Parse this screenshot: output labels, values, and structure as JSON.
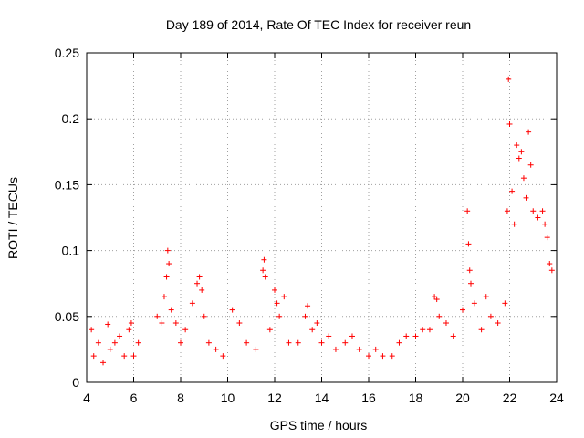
{
  "chart_data": {
    "type": "scatter",
    "title": "Day 189 of 2014, Rate Of TEC Index for receiver reun",
    "xlabel": "GPS time / hours",
    "ylabel": "ROTI / TECUs",
    "xlim": [
      4,
      24
    ],
    "ylim": [
      0,
      0.25
    ],
    "xticks": [
      4,
      6,
      8,
      10,
      12,
      14,
      16,
      18,
      20,
      22,
      24
    ],
    "xtick_labels": [
      "4",
      "6",
      "8",
      "10",
      "12",
      "14",
      "16",
      "18",
      "20",
      "22",
      "24"
    ],
    "yticks": [
      0,
      0.05,
      0.1,
      0.15,
      0.2,
      0.25
    ],
    "ytick_labels": [
      "0",
      "0.05",
      "0.1",
      "0.15",
      "0.2",
      "0.25"
    ],
    "grid": true,
    "marker": "+",
    "color": "#ff0000",
    "series": [
      {
        "name": "ROTI",
        "points": [
          [
            4.2,
            0.04
          ],
          [
            4.3,
            0.02
          ],
          [
            4.5,
            0.03
          ],
          [
            4.7,
            0.015
          ],
          [
            4.9,
            0.044
          ],
          [
            5.0,
            0.025
          ],
          [
            5.2,
            0.03
          ],
          [
            5.4,
            0.035
          ],
          [
            5.6,
            0.02
          ],
          [
            5.8,
            0.04
          ],
          [
            5.9,
            0.045
          ],
          [
            6.0,
            0.02
          ],
          [
            6.2,
            0.03
          ],
          [
            7.0,
            0.05
          ],
          [
            7.2,
            0.045
          ],
          [
            7.3,
            0.065
          ],
          [
            7.4,
            0.08
          ],
          [
            7.45,
            0.1
          ],
          [
            7.5,
            0.09
          ],
          [
            7.6,
            0.055
          ],
          [
            7.8,
            0.045
          ],
          [
            8.0,
            0.03
          ],
          [
            8.2,
            0.04
          ],
          [
            8.5,
            0.06
          ],
          [
            8.7,
            0.075
          ],
          [
            8.8,
            0.08
          ],
          [
            8.9,
            0.07
          ],
          [
            9.0,
            0.05
          ],
          [
            9.2,
            0.03
          ],
          [
            9.5,
            0.025
          ],
          [
            9.8,
            0.02
          ],
          [
            10.2,
            0.055
          ],
          [
            10.5,
            0.045
          ],
          [
            10.8,
            0.03
          ],
          [
            11.2,
            0.025
          ],
          [
            11.5,
            0.085
          ],
          [
            11.55,
            0.093
          ],
          [
            11.6,
            0.08
          ],
          [
            11.8,
            0.04
          ],
          [
            12.0,
            0.07
          ],
          [
            12.1,
            0.06
          ],
          [
            12.2,
            0.05
          ],
          [
            12.4,
            0.065
          ],
          [
            12.6,
            0.03
          ],
          [
            13.0,
            0.03
          ],
          [
            13.3,
            0.05
          ],
          [
            13.4,
            0.058
          ],
          [
            13.6,
            0.04
          ],
          [
            13.8,
            0.045
          ],
          [
            14.0,
            0.03
          ],
          [
            14.3,
            0.035
          ],
          [
            14.6,
            0.025
          ],
          [
            15.0,
            0.03
          ],
          [
            15.3,
            0.035
          ],
          [
            15.6,
            0.025
          ],
          [
            16.0,
            0.02
          ],
          [
            16.3,
            0.025
          ],
          [
            16.6,
            0.02
          ],
          [
            17.0,
            0.02
          ],
          [
            17.3,
            0.03
          ],
          [
            17.6,
            0.035
          ],
          [
            18.0,
            0.035
          ],
          [
            18.3,
            0.04
          ],
          [
            18.6,
            0.04
          ],
          [
            18.8,
            0.065
          ],
          [
            18.9,
            0.063
          ],
          [
            19.0,
            0.05
          ],
          [
            19.3,
            0.045
          ],
          [
            19.6,
            0.035
          ],
          [
            20.0,
            0.055
          ],
          [
            20.2,
            0.13
          ],
          [
            20.25,
            0.105
          ],
          [
            20.3,
            0.085
          ],
          [
            20.35,
            0.075
          ],
          [
            20.5,
            0.06
          ],
          [
            20.8,
            0.04
          ],
          [
            21.0,
            0.065
          ],
          [
            21.2,
            0.05
          ],
          [
            21.5,
            0.045
          ],
          [
            21.8,
            0.06
          ],
          [
            21.9,
            0.13
          ],
          [
            21.95,
            0.23
          ],
          [
            22.0,
            0.196
          ],
          [
            22.1,
            0.145
          ],
          [
            22.2,
            0.12
          ],
          [
            22.3,
            0.18
          ],
          [
            22.4,
            0.17
          ],
          [
            22.5,
            0.175
          ],
          [
            22.6,
            0.155
          ],
          [
            22.7,
            0.14
          ],
          [
            22.8,
            0.19
          ],
          [
            22.9,
            0.165
          ],
          [
            23.0,
            0.13
          ],
          [
            23.2,
            0.125
          ],
          [
            23.4,
            0.13
          ],
          [
            23.5,
            0.12
          ],
          [
            23.6,
            0.11
          ],
          [
            23.7,
            0.09
          ],
          [
            23.8,
            0.085
          ]
        ]
      }
    ]
  }
}
